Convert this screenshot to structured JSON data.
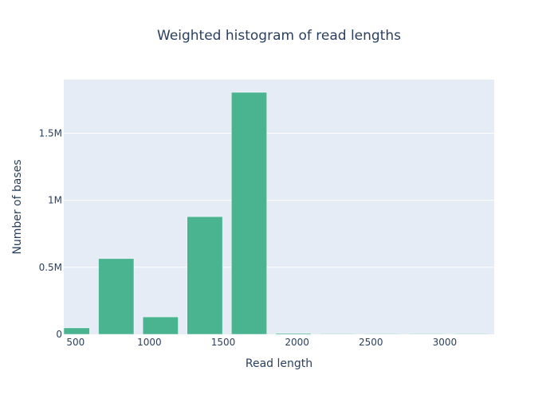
{
  "chart_data": {
    "type": "bar",
    "title": "Weighted histogram of read lengths",
    "xlabel": "Read length",
    "ylabel": "Number of bases",
    "xlim": [
      420,
      3335
    ],
    "ylim": [
      0,
      1900000
    ],
    "bin_width": 300,
    "x_ticks": [
      500,
      1000,
      1500,
      2000,
      2500,
      3000
    ],
    "x_tick_labels": [
      "500",
      "1000",
      "1500",
      "2000",
      "2500",
      "3000"
    ],
    "y_ticks": [
      0,
      500000,
      1000000,
      1500000
    ],
    "y_tick_labels": [
      "0",
      "0.5M",
      "1M",
      "1.5M"
    ],
    "bins": [
      {
        "x": 475,
        "value": 48000
      },
      {
        "x": 775,
        "value": 565000
      },
      {
        "x": 1075,
        "value": 130000
      },
      {
        "x": 1375,
        "value": 878000
      },
      {
        "x": 1675,
        "value": 1805000
      },
      {
        "x": 1975,
        "value": 8000
      },
      {
        "x": 2275,
        "value": 1500
      },
      {
        "x": 2575,
        "value": 1500
      },
      {
        "x": 2875,
        "value": 1500
      },
      {
        "x": 3175,
        "value": 4000
      }
    ],
    "grid": true,
    "colors": {
      "bar": "#4ab491",
      "bar_outline": "#ffffff",
      "plot_background": "#e5ecf6",
      "grid": "#ffffff",
      "text": "#2a3f5f"
    }
  }
}
